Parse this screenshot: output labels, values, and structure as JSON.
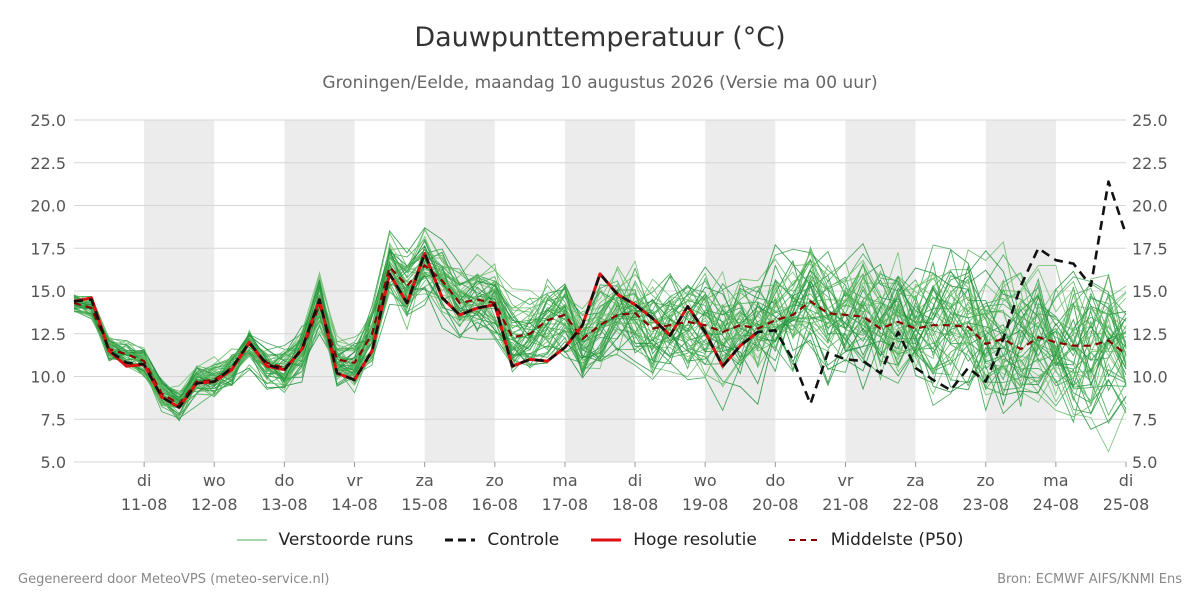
{
  "title": "Dauwpunttemperatuur (°C)",
  "subtitle": "Groningen/Eelde, maandag 10 augustus 2026 (Versie ma 00 uur)",
  "footer": {
    "left": "Gegenereerd door MeteoVPS (meteo-service.nl)",
    "right": "Bron: ECMWF AIFS/KNMI Ens"
  },
  "legend": [
    {
      "label": "Verstoorde runs",
      "color": "#4caf50",
      "style": "thin"
    },
    {
      "label": "Controle",
      "color": "#111111",
      "style": "dashed"
    },
    {
      "label": "Hoge resolutie",
      "color": "#dd1111",
      "style": "solid"
    },
    {
      "label": "Middelste (P50)",
      "color": "#8b0000",
      "style": "dashed-thin"
    }
  ],
  "chart_data": {
    "type": "line",
    "title": "Dauwpunttemperatuur (°C)",
    "ylabel": "",
    "ylim": [
      5.0,
      25.0
    ],
    "y_ticks": [
      "5.0",
      "7.5",
      "10.0",
      "12.5",
      "15.0",
      "17.5",
      "20.0",
      "22.5",
      "25.0"
    ],
    "xlim_days_label": [
      "10-08",
      "25-08"
    ],
    "x_ticks": [
      {
        "day": "di",
        "date": "11-08"
      },
      {
        "day": "wo",
        "date": "12-08"
      },
      {
        "day": "do",
        "date": "13-08"
      },
      {
        "day": "vr",
        "date": "14-08"
      },
      {
        "day": "za",
        "date": "15-08"
      },
      {
        "day": "zo",
        "date": "16-08"
      },
      {
        "day": "ma",
        "date": "17-08"
      },
      {
        "day": "di",
        "date": "18-08"
      },
      {
        "day": "wo",
        "date": "19-08"
      },
      {
        "day": "do",
        "date": "20-08"
      },
      {
        "day": "vr",
        "date": "21-08"
      },
      {
        "day": "za",
        "date": "22-08"
      },
      {
        "day": "zo",
        "date": "23-08"
      },
      {
        "day": "ma",
        "date": "24-08"
      },
      {
        "day": "di",
        "date": "25-08"
      }
    ],
    "shaded_days": [
      "11-08",
      "13-08",
      "15-08",
      "17-08",
      "19-08",
      "21-08",
      "23-08"
    ],
    "grid": true,
    "legend_position": "bottom",
    "ensemble_member_count": 50,
    "series": [
      {
        "name": "Controle",
        "x_days": [
          0.0,
          0.25,
          0.5,
          0.75,
          1.0,
          1.25,
          1.5,
          1.75,
          2.0,
          2.25,
          2.5,
          2.75,
          3.0,
          3.25,
          3.5,
          3.75,
          4.0,
          4.25,
          4.5,
          4.75,
          5.0,
          5.25,
          5.5,
          5.75,
          6.0,
          6.25,
          6.5,
          6.75,
          7.0,
          7.25,
          7.5,
          7.75,
          8.0,
          8.25,
          8.5,
          8.75,
          9.0,
          9.25,
          9.5,
          9.75,
          10.0,
          10.25,
          10.5,
          10.75,
          11.0,
          11.25,
          11.5,
          11.75,
          12.0,
          12.25,
          12.5,
          12.75,
          13.0,
          13.25,
          13.5,
          13.75,
          14.0,
          14.25,
          14.5,
          14.75,
          15.0
        ],
        "values": [
          14.4,
          14.5,
          11.5,
          10.8,
          10.7,
          8.8,
          8.2,
          9.6,
          9.7,
          10.5,
          12.0,
          10.7,
          10.4,
          11.6,
          14.5,
          10.2,
          9.8,
          11.5,
          16.0,
          14.3,
          17.2,
          14.6,
          13.6,
          14.0,
          14.2,
          10.6,
          11.0,
          10.9,
          11.7,
          13.0,
          16.0,
          14.8,
          14.2,
          13.4,
          12.4,
          14.1,
          12.6,
          10.6,
          11.8,
          12.6,
          12.7,
          11.0,
          8.4,
          11.4,
          11.0,
          10.9,
          10.2,
          12.6,
          10.5,
          9.8,
          9.2,
          10.5,
          9.7,
          12.2,
          15.3,
          17.5,
          16.8,
          16.6,
          15.3,
          21.4,
          18.3
        ]
      },
      {
        "name": "Hoge resolutie",
        "x_days": [
          0.0,
          0.25,
          0.5,
          0.75,
          1.0,
          1.25,
          1.5,
          1.75,
          2.0,
          2.25,
          2.5,
          2.75,
          3.0,
          3.25,
          3.5,
          3.75,
          4.0,
          4.25,
          4.5,
          4.75,
          5.0,
          5.25,
          5.5,
          5.75,
          6.0,
          6.25,
          6.5,
          6.75,
          7.0,
          7.25,
          7.5,
          7.75,
          8.0,
          8.25,
          8.5,
          8.75,
          9.0,
          9.25,
          9.5,
          9.75
        ],
        "values": [
          14.4,
          14.6,
          11.5,
          10.6,
          10.7,
          8.8,
          8.2,
          9.6,
          9.7,
          10.4,
          12.0,
          10.6,
          10.4,
          11.6,
          14.5,
          10.2,
          9.8,
          11.5,
          16.0,
          14.3,
          17.2,
          14.6,
          13.6,
          14.0,
          14.2,
          10.6,
          11.0,
          10.9,
          11.7,
          13.0,
          16.0,
          14.8,
          14.2,
          13.4,
          12.4,
          14.1,
          12.6,
          10.6,
          11.8,
          12.6
        ]
      },
      {
        "name": "Middelste (P50)",
        "x_days": [
          0.0,
          0.25,
          0.5,
          0.75,
          1.0,
          1.25,
          1.5,
          1.75,
          2.0,
          2.25,
          2.5,
          2.75,
          3.0,
          3.25,
          3.5,
          3.75,
          4.0,
          4.25,
          4.5,
          4.75,
          5.0,
          5.25,
          5.5,
          5.75,
          6.0,
          6.25,
          6.5,
          6.75,
          7.0,
          7.25,
          7.5,
          7.75,
          8.0,
          8.25,
          8.5,
          8.75,
          9.0,
          9.25,
          9.5,
          9.75,
          10.0,
          10.25,
          10.5,
          10.75,
          11.0,
          11.25,
          11.5,
          11.75,
          12.0,
          12.25,
          12.5,
          12.75,
          13.0,
          13.25,
          13.5,
          13.75,
          14.0,
          14.25,
          14.5,
          14.75,
          15.0
        ],
        "values": [
          14.3,
          14.0,
          11.6,
          11.3,
          10.9,
          9.0,
          8.4,
          9.7,
          9.8,
          10.5,
          11.9,
          10.8,
          10.5,
          11.5,
          14.2,
          11.0,
          10.8,
          12.5,
          16.4,
          15.3,
          16.5,
          15.6,
          14.3,
          14.5,
          14.3,
          12.3,
          12.5,
          13.3,
          13.6,
          12.2,
          13.0,
          13.6,
          13.7,
          12.8,
          13.0,
          13.2,
          13.0,
          12.6,
          13.0,
          12.8,
          13.3,
          13.6,
          14.4,
          13.7,
          13.6,
          13.5,
          12.8,
          13.2,
          12.8,
          13.0,
          13.0,
          12.9,
          11.9,
          12.2,
          11.6,
          12.3,
          12.0,
          11.8,
          11.8,
          12.1,
          11.3
        ]
      }
    ]
  }
}
